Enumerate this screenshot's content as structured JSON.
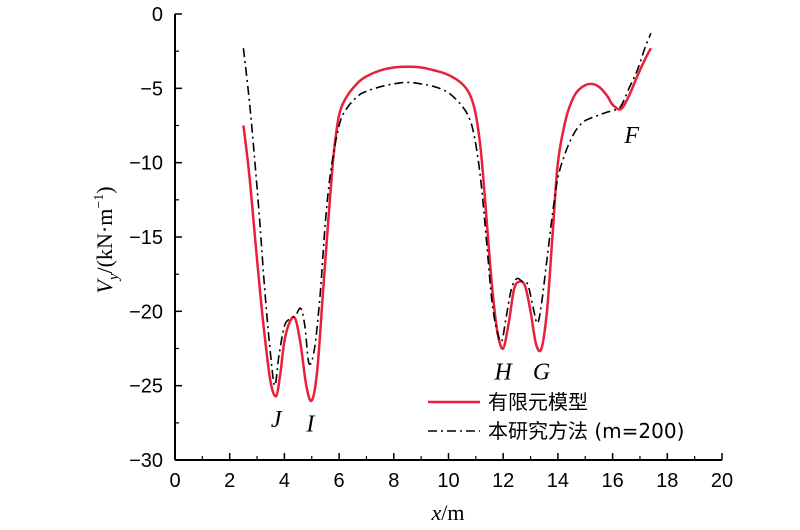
{
  "chart_data": {
    "type": "line",
    "xlabel": {
      "var": "x",
      "unit": "/m"
    },
    "ylabel": {
      "var": "V",
      "sub": "y",
      "unit_open": "/(kN·m",
      "sup": "−1",
      "unit_close": ")"
    },
    "xlim": [
      0,
      20
    ],
    "ylim": [
      -30,
      0
    ],
    "xticks": [
      0,
      2,
      4,
      6,
      8,
      10,
      12,
      14,
      16,
      18,
      20
    ],
    "yticks": [
      0,
      -5,
      -10,
      -15,
      -20,
      -25,
      -30
    ],
    "grid": false,
    "legend_position": "bottom-right",
    "colors": {
      "fem": "#e8203a",
      "method": "#000000"
    },
    "series": [
      {
        "name": "有限元模型",
        "style": "solid",
        "x": [
          2.5,
          2.7,
          2.9,
          3.1,
          3.3,
          3.5,
          3.7,
          3.85,
          4.0,
          4.2,
          4.4,
          4.6,
          4.8,
          5.0,
          5.2,
          5.4,
          5.6,
          5.8,
          6.0,
          6.3,
          6.7,
          7.0,
          7.5,
          8.0,
          8.5,
          9.0,
          9.5,
          10.0,
          10.5,
          10.8,
          11.0,
          11.2,
          11.4,
          11.6,
          11.8,
          12.0,
          12.2,
          12.4,
          12.6,
          12.8,
          13.0,
          13.2,
          13.4,
          13.6,
          13.8,
          14.0,
          14.3,
          14.6,
          14.9,
          15.2,
          15.5,
          15.8,
          16.0,
          16.3,
          16.6,
          16.9,
          17.2,
          17.4
        ],
        "y": [
          -7.5,
          -10.5,
          -14.5,
          -18.5,
          -22.0,
          -24.8,
          -25.7,
          -24.2,
          -22.0,
          -20.7,
          -20.5,
          -22.3,
          -25.0,
          -26.0,
          -24.0,
          -19.0,
          -14.0,
          -9.5,
          -6.8,
          -5.5,
          -4.6,
          -4.2,
          -3.8,
          -3.6,
          -3.55,
          -3.6,
          -3.8,
          -4.1,
          -4.7,
          -5.5,
          -6.8,
          -9.5,
          -14.0,
          -18.5,
          -21.5,
          -22.5,
          -20.8,
          -18.5,
          -18.0,
          -18.3,
          -20.0,
          -22.2,
          -22.5,
          -20.0,
          -15.0,
          -10.0,
          -7.0,
          -5.5,
          -4.9,
          -4.7,
          -4.9,
          -5.5,
          -6.1,
          -6.4,
          -5.5,
          -4.2,
          -3.0,
          -2.3
        ]
      },
      {
        "name": "本研究方法 (m=200)",
        "style": "dashdot",
        "x": [
          2.5,
          2.7,
          2.9,
          3.1,
          3.3,
          3.5,
          3.65,
          3.8,
          4.0,
          4.2,
          4.4,
          4.6,
          4.75,
          4.9,
          5.1,
          5.3,
          5.5,
          5.7,
          6.0,
          6.3,
          6.7,
          7.0,
          7.5,
          8.0,
          8.5,
          9.0,
          9.5,
          10.0,
          10.5,
          10.8,
          11.0,
          11.2,
          11.4,
          11.6,
          11.8,
          11.95,
          12.1,
          12.3,
          12.5,
          12.7,
          12.9,
          13.1,
          13.25,
          13.4,
          13.6,
          13.8,
          14.0,
          14.3,
          14.6,
          14.9,
          15.2,
          15.5,
          15.8,
          16.0,
          16.3,
          16.6,
          16.9,
          17.2,
          17.4
        ],
        "y": [
          -2.3,
          -5.5,
          -9.5,
          -14.0,
          -19.0,
          -23.0,
          -25.0,
          -23.0,
          -21.0,
          -20.5,
          -20.3,
          -19.8,
          -21.0,
          -23.5,
          -22.5,
          -19.0,
          -14.0,
          -10.5,
          -7.5,
          -6.3,
          -5.5,
          -5.2,
          -4.9,
          -4.7,
          -4.6,
          -4.7,
          -4.9,
          -5.3,
          -6.2,
          -7.2,
          -8.8,
          -11.5,
          -15.5,
          -19.5,
          -21.5,
          -22.0,
          -20.5,
          -18.5,
          -17.8,
          -18.0,
          -18.2,
          -19.8,
          -20.8,
          -19.5,
          -16.5,
          -13.5,
          -11.0,
          -9.2,
          -8.0,
          -7.3,
          -7.0,
          -6.8,
          -6.6,
          -6.5,
          -6.2,
          -5.0,
          -3.8,
          -2.2,
          -1.3
        ]
      }
    ],
    "annotations": [
      {
        "text": "J",
        "x": 3.7,
        "y": -26.3
      },
      {
        "text": "I",
        "x": 4.95,
        "y": -26.6
      },
      {
        "text": "H",
        "x": 12.0,
        "y": -23.1
      },
      {
        "text": "G",
        "x": 13.4,
        "y": -23.1
      },
      {
        "text": "F",
        "x": 16.7,
        "y": -7.2
      }
    ]
  }
}
